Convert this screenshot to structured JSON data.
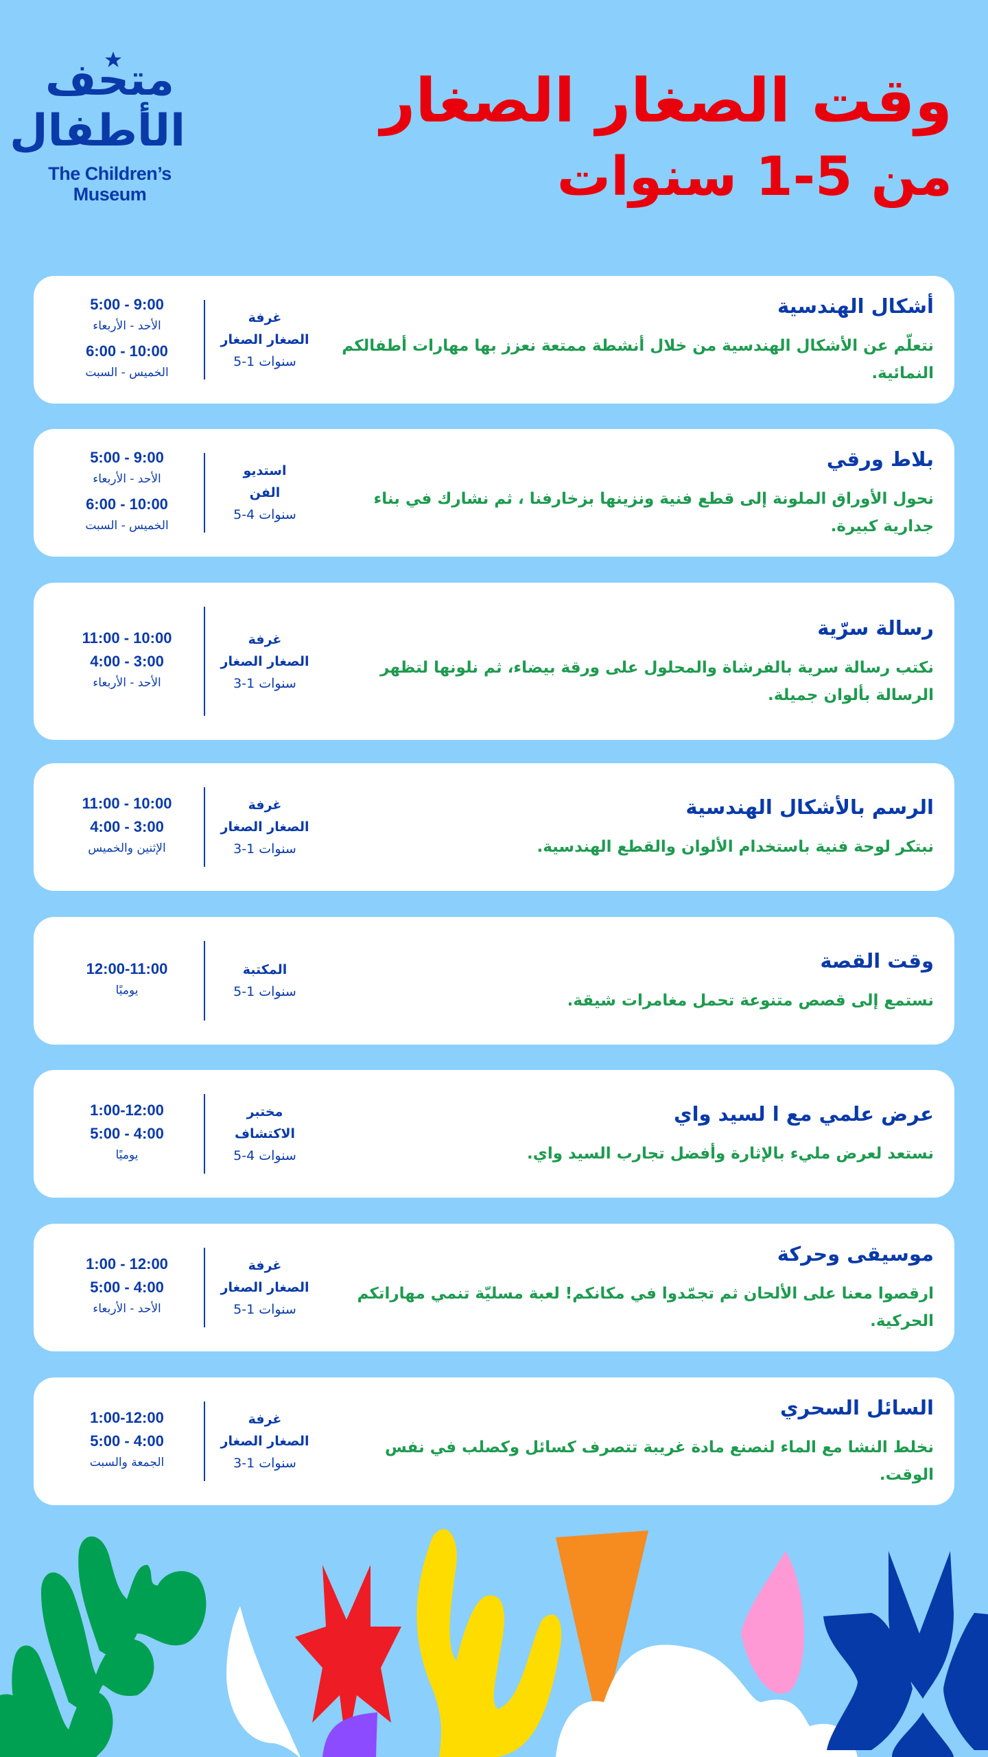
{
  "logo": {
    "arabic": "متحف الأطفال",
    "english_line1": "The Children’s",
    "english_line2": "Museum"
  },
  "header": {
    "title_line1": "وقت الصغار الصغار",
    "title_line2": "من 5-1 سنوات"
  },
  "colors": {
    "background": "#8bcffc",
    "title": "#e8000d",
    "heading": "#0a3aa8",
    "description": "#1e9a4f",
    "card": "#ffffff"
  },
  "activities": [
    {
      "title": "أشكال الهندسية",
      "description": "نتعلّم عن الأشكال الهندسية من خلال أنشطة ممتعة نعزز بها مهارات أطفالكم النمائية.",
      "location": [
        "غرفة",
        "الصغار الصغار"
      ],
      "age": "5-1 سنوات",
      "schedule": [
        {
          "text": "5:00 - 9:00",
          "kind": "time"
        },
        {
          "text": "الأحد - الأربعاء",
          "kind": "days"
        },
        {
          "text": "6:00 - 10:00",
          "kind": "time"
        },
        {
          "text": "الخميس - السبت",
          "kind": "days"
        }
      ]
    },
    {
      "title": "بلاط ورقي",
      "description": "نحول الأوراق الملونة إلى قطع فنية ونزينها بزخارفنا ، ثم نشارك في بناء جدارية كبيرة.",
      "location": [
        "استديو",
        "الفن"
      ],
      "age": "5-4 سنوات",
      "schedule": [
        {
          "text": "5:00 - 9:00",
          "kind": "time"
        },
        {
          "text": "الأحد - الأربعاء",
          "kind": "days"
        },
        {
          "text": "6:00 - 10:00",
          "kind": "time"
        },
        {
          "text": "الخميس - السبت",
          "kind": "days"
        }
      ]
    },
    {
      "title": "رسالة سرّية",
      "description": "نكتب رسالة سرية بالفرشاة والمحلول على ورقة بيضاء، ثم نلونها لتظهر الرسالة بألوان جميلة.",
      "location": [
        "غرفة",
        "الصغار الصغار"
      ],
      "age": "3-1 سنوات",
      "schedule": [
        {
          "text": "11:00 - 10:00",
          "kind": "time"
        },
        {
          "text": "4:00 - 3:00",
          "kind": "time"
        },
        {
          "text": "الأحد - الأربعاء",
          "kind": "days"
        }
      ]
    },
    {
      "title": "الرسم بالأشكال الهندسية",
      "description": "نبتكر لوحة فنية باستخدام الألوان والقطع الهندسية.",
      "location": [
        "غرفة",
        "الصغار الصغار"
      ],
      "age": "3-1 سنوات",
      "schedule": [
        {
          "text": "11:00 - 10:00",
          "kind": "time"
        },
        {
          "text": "4:00 - 3:00",
          "kind": "time"
        },
        {
          "text": "الإثنين والخميس",
          "kind": "days"
        }
      ]
    },
    {
      "title": "وقت القصة",
      "description": "نستمع إلى قصص متنوعة تحمل مغامرات شيقة.",
      "location": [
        "المكتبة"
      ],
      "age": "5-1 سنوات",
      "schedule": [
        {
          "text": "12:00-11:00",
          "kind": "time"
        },
        {
          "text": "يوميًا",
          "kind": "days"
        }
      ]
    },
    {
      "title": "عرض علمي مع ا لسيد واي",
      "description": "نستعد لعرض مليء بالإثارة وأفضل تجارب السيد واي.",
      "location": [
        "مختبر",
        "الاكتشاف"
      ],
      "age": "5-4 سنوات",
      "schedule": [
        {
          "text": "1:00-12:00",
          "kind": "time"
        },
        {
          "text": "5:00 - 4:00",
          "kind": "time"
        },
        {
          "text": "يوميًا",
          "kind": "days"
        }
      ]
    },
    {
      "title": "موسيقى وحركة",
      "description": "ارقصوا معنا على الألحان ثم تجمّدوا في مكانكم! لعبة مسليّة تنمي مهاراتكم الحركية.",
      "location": [
        "غرفة",
        "الصغار الصغار"
      ],
      "age": "5-1 سنوات",
      "schedule": [
        {
          "text": "1:00 - 12:00",
          "kind": "time"
        },
        {
          "text": "5:00 - 4:00",
          "kind": "time"
        },
        {
          "text": "الأحد - الأربعاء",
          "kind": "days"
        }
      ]
    },
    {
      "title": "السائل السحري",
      "description": "نخلط النشا مع الماء لنصنع مادة غريبة تتصرف كسائل وكصلب في نفس الوقت.",
      "location": [
        "غرفة",
        "الصغار الصغار"
      ],
      "age": "3-1 سنوات",
      "schedule": [
        {
          "text": "1:00-12:00",
          "kind": "time"
        },
        {
          "text": "5:00 - 4:00",
          "kind": "time"
        },
        {
          "text": "الجمعة والسبت",
          "kind": "days"
        }
      ]
    }
  ]
}
